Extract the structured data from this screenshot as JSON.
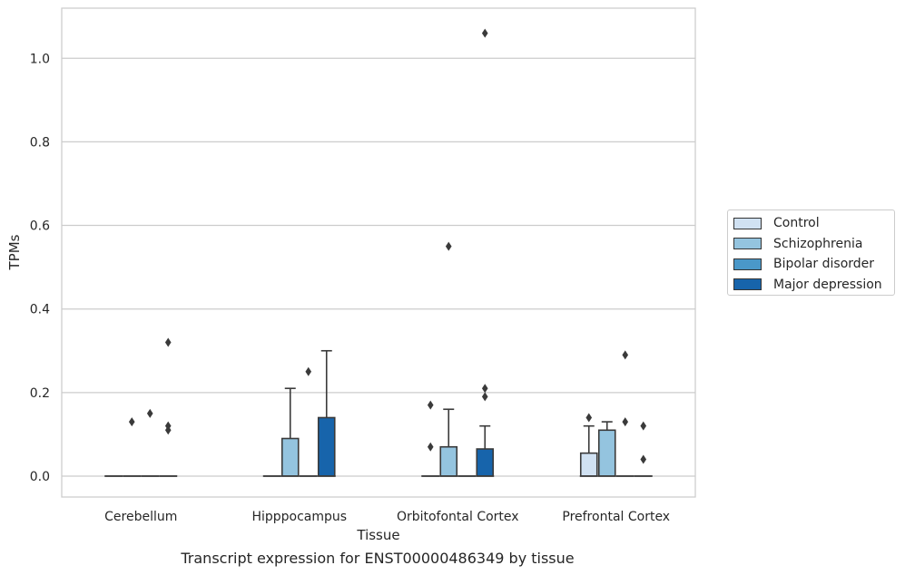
{
  "chart_data": {
    "type": "box",
    "xlabel": "Tissue",
    "ylabel": "TPMs",
    "caption": "Transcript expression for ENST00000486349 by tissue",
    "ylim": [
      -0.05,
      1.12
    ],
    "yticks": [
      0.0,
      0.2,
      0.4,
      0.6,
      0.8,
      1.0
    ],
    "ytick_labels": [
      "0.0",
      "0.2",
      "0.4",
      "0.6",
      "0.8",
      "1.0"
    ],
    "grid": "horizontal",
    "legend_position": "right",
    "categories": [
      "Cerebellum",
      "Hipppocampus",
      "Orbitofontal Cortex",
      "Prefrontal Cortex"
    ],
    "series": [
      {
        "name": "Control",
        "color": "#d0e1f2",
        "boxes": [
          {
            "q1": 0,
            "median": 0,
            "q3": 0,
            "whisker_low": 0,
            "whisker_high": 0,
            "outliers": []
          },
          {
            "q1": 0,
            "median": 0,
            "q3": 0,
            "whisker_low": 0,
            "whisker_high": 0,
            "outliers": []
          },
          {
            "q1": 0,
            "median": 0,
            "q3": 0,
            "whisker_low": 0,
            "whisker_high": 0,
            "outliers": [
              0.17,
              0.07
            ]
          },
          {
            "q1": 0,
            "median": 0,
            "q3": 0.055,
            "whisker_low": 0,
            "whisker_high": 0.12,
            "outliers": [
              0.14
            ]
          }
        ]
      },
      {
        "name": "Schizophrenia",
        "color": "#94c4df",
        "boxes": [
          {
            "q1": 0,
            "median": 0,
            "q3": 0,
            "whisker_low": 0,
            "whisker_high": 0,
            "outliers": [
              0.13
            ]
          },
          {
            "q1": 0,
            "median": 0,
            "q3": 0.09,
            "whisker_low": 0,
            "whisker_high": 0.21,
            "outliers": []
          },
          {
            "q1": 0,
            "median": 0,
            "q3": 0.07,
            "whisker_low": 0,
            "whisker_high": 0.16,
            "outliers": [
              0.55
            ]
          },
          {
            "q1": 0,
            "median": 0,
            "q3": 0.11,
            "whisker_low": 0,
            "whisker_high": 0.13,
            "outliers": []
          }
        ]
      },
      {
        "name": "Bipolar disorder",
        "color": "#4a98c9",
        "boxes": [
          {
            "q1": 0,
            "median": 0,
            "q3": 0,
            "whisker_low": 0,
            "whisker_high": 0,
            "outliers": [
              0.15
            ]
          },
          {
            "q1": 0,
            "median": 0,
            "q3": 0,
            "whisker_low": 0,
            "whisker_high": 0,
            "outliers": [
              0.25
            ]
          },
          {
            "q1": 0,
            "median": 0,
            "q3": 0,
            "whisker_low": 0,
            "whisker_high": 0,
            "outliers": []
          },
          {
            "q1": 0,
            "median": 0,
            "q3": 0,
            "whisker_low": 0,
            "whisker_high": 0,
            "outliers": [
              0.29,
              0.13
            ]
          }
        ]
      },
      {
        "name": "Major depression",
        "color": "#1764ab",
        "boxes": [
          {
            "q1": 0,
            "median": 0,
            "q3": 0,
            "whisker_low": 0,
            "whisker_high": 0,
            "outliers": [
              0.32,
              0.12,
              0.11
            ]
          },
          {
            "q1": 0,
            "median": 0,
            "q3": 0.14,
            "whisker_low": 0,
            "whisker_high": 0.3,
            "outliers": []
          },
          {
            "q1": 0,
            "median": 0,
            "q3": 0.065,
            "whisker_low": 0,
            "whisker_high": 0.12,
            "outliers": [
              1.06,
              0.21,
              0.19
            ]
          },
          {
            "q1": 0,
            "median": 0,
            "q3": 0,
            "whisker_low": 0,
            "whisker_high": 0,
            "outliers": [
              0.12,
              0.04
            ]
          }
        ]
      }
    ]
  }
}
